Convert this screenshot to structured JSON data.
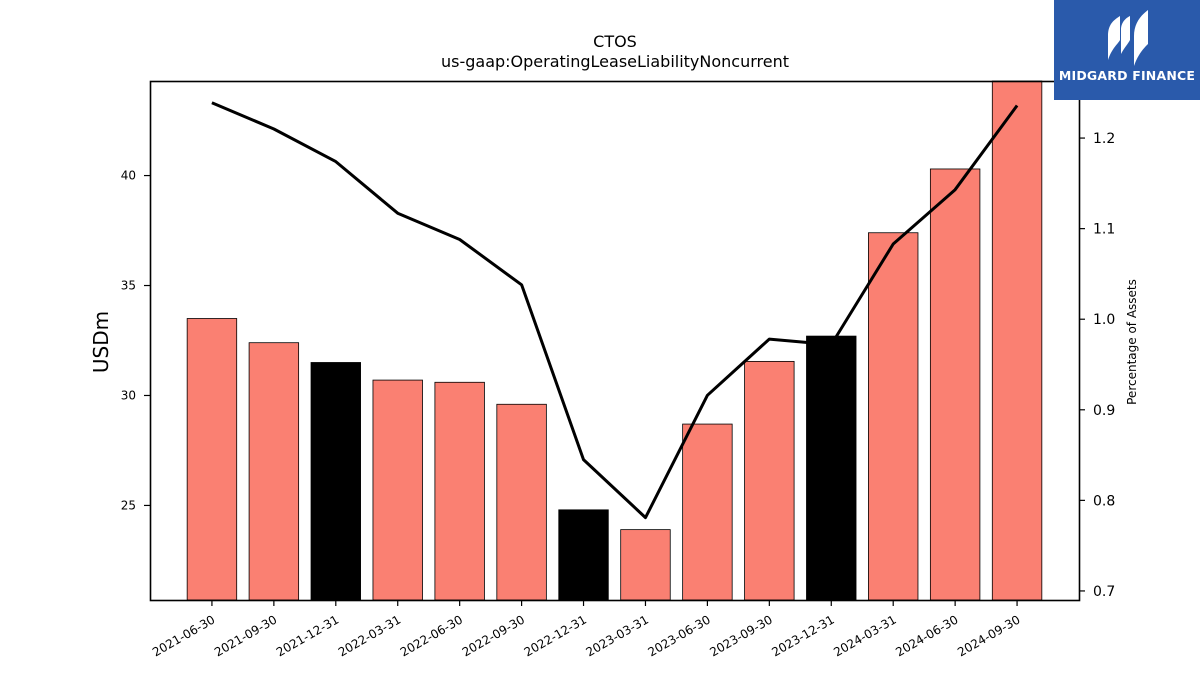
{
  "logo": {
    "text": "MIDGARD FINANCE",
    "icon": "midgard-logo-icon",
    "background": "#2a5aab"
  },
  "chart_data": {
    "type": "bar",
    "title": "CTOS",
    "subtitle": "us-gaap:OperatingLeaseLiabilityNoncurrent",
    "ylabel": "USDm",
    "y2label": "Percentage of Assets",
    "categories": [
      "2021-06-30",
      "2021-09-30",
      "2021-12-31",
      "2022-03-31",
      "2022-06-30",
      "2022-09-30",
      "2022-12-31",
      "2023-03-31",
      "2023-06-30",
      "2023-09-30",
      "2023-12-31",
      "2024-03-31",
      "2024-06-30",
      "2024-09-30"
    ],
    "ylim": [
      20.7,
      44.3
    ],
    "y_ticks": [
      25,
      30,
      35,
      40
    ],
    "y2lim": [
      0.69,
      1.263
    ],
    "y2_ticks": [
      0.7,
      0.8,
      0.9,
      1.0,
      1.1,
      1.2
    ],
    "series": [
      {
        "type": "bar",
        "values": [
          33.5,
          32.4,
          31.5,
          30.7,
          30.6,
          29.6,
          24.8,
          23.9,
          28.7,
          31.55,
          32.7,
          37.4,
          40.3,
          44.3
        ],
        "colors": [
          "#fa8072",
          "#fa8072",
          "#000000",
          "#fa8072",
          "#fa8072",
          "#fa8072",
          "#000000",
          "#fa8072",
          "#fa8072",
          "#fa8072",
          "#000000",
          "#fa8072",
          "#fa8072",
          "#fa8072"
        ]
      },
      {
        "type": "line",
        "axis": "right",
        "color": "#000000",
        "values": [
          1.239,
          1.21,
          1.174,
          1.117,
          1.088,
          1.038,
          0.845,
          0.781,
          0.916,
          0.978,
          0.972,
          1.083,
          1.143,
          1.236
        ]
      }
    ],
    "grid": false,
    "legend": "none"
  }
}
